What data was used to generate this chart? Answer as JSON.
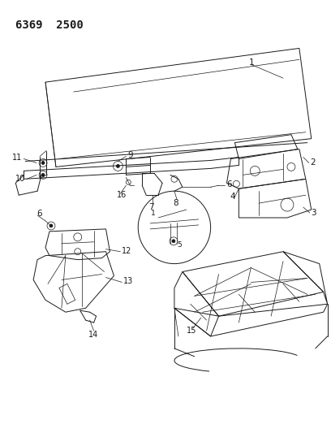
{
  "title": "6369  2500",
  "bg_color": "#ffffff",
  "line_color": "#1a1a1a",
  "title_fontsize": 10,
  "label_fontsize": 7.5,
  "figsize": [
    4.08,
    5.33
  ],
  "dpi": 100
}
